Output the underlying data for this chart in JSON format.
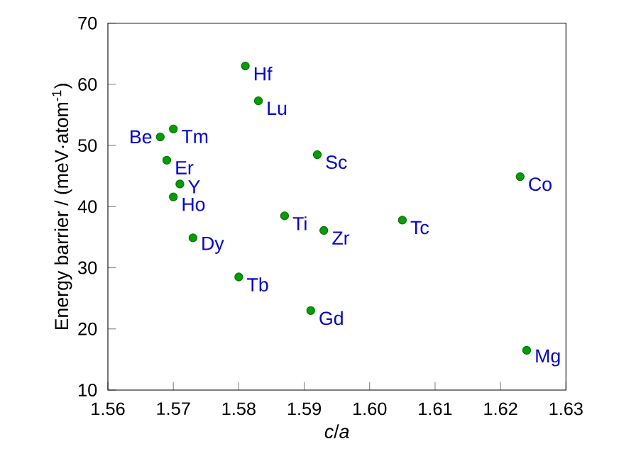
{
  "chart_data": {
    "type": "scatter",
    "xlabel": "*c*/*a*",
    "ylabel": "Energy barrier / (meV·atom$^{-1}$)",
    "x": [
      1.581,
      1.583,
      1.57,
      1.568,
      1.569,
      1.571,
      1.57,
      1.573,
      1.58,
      1.587,
      1.593,
      1.592,
      1.591,
      1.605,
      1.623,
      1.624
    ],
    "values": [
      63.0,
      57.3,
      52.7,
      51.4,
      47.6,
      43.7,
      41.6,
      34.9,
      28.5,
      38.5,
      36.1,
      48.5,
      23.0,
      37.8,
      44.9,
      16.5
    ],
    "color": "#00a000",
    "marker": "circle",
    "xlim": [
      1.56,
      1.63
    ],
    "xticks": [
      {
        "value": 1.56,
        "label": "1.56"
      },
      {
        "value": 1.57,
        "label": "1.57"
      },
      {
        "value": 1.58,
        "label": "1.58"
      },
      {
        "value": 1.59,
        "label": "1.59"
      },
      {
        "value": 1.6,
        "label": "1.60"
      },
      {
        "value": 1.61,
        "label": "1.61"
      },
      {
        "value": 1.62,
        "label": "1.62"
      },
      {
        "value": 1.63,
        "label": "1.63"
      }
    ],
    "ylim": [
      10,
      70
    ],
    "yticks": [
      10,
      20,
      30,
      40,
      50,
      60,
      70
    ],
    "annotations": [
      {
        "text": "Hf",
        "x": 1.581,
        "y": 63.0
      },
      {
        "text": "Lu",
        "x": 1.583,
        "y": 57.3
      },
      {
        "text": "Tm",
        "x": 1.57,
        "y": 52.7
      },
      {
        "text": "Be",
        "x": 1.568,
        "y": 51.4
      },
      {
        "text": "Er",
        "x": 1.569,
        "y": 47.6
      },
      {
        "text": "Y",
        "x": 1.571,
        "y": 43.7
      },
      {
        "text": "Ho",
        "x": 1.57,
        "y": 41.6
      },
      {
        "text": "Dy",
        "x": 1.573,
        "y": 34.9
      },
      {
        "text": "Tb",
        "x": 1.58,
        "y": 28.5
      },
      {
        "text": "Ti",
        "x": 1.587,
        "y": 38.5
      },
      {
        "text": "Zr",
        "x": 1.593,
        "y": 36.1
      },
      {
        "text": "Sc",
        "x": 1.592,
        "y": 48.5
      },
      {
        "text": "Gd",
        "x": 1.591,
        "y": 23.0
      },
      {
        "text": "Tc",
        "x": 1.605,
        "y": 37.8
      },
      {
        "text": "Co",
        "x": 1.623,
        "y": 44.9
      },
      {
        "text": "Mg",
        "x": 1.624,
        "y": 16.5
      }
    ]
  }
}
